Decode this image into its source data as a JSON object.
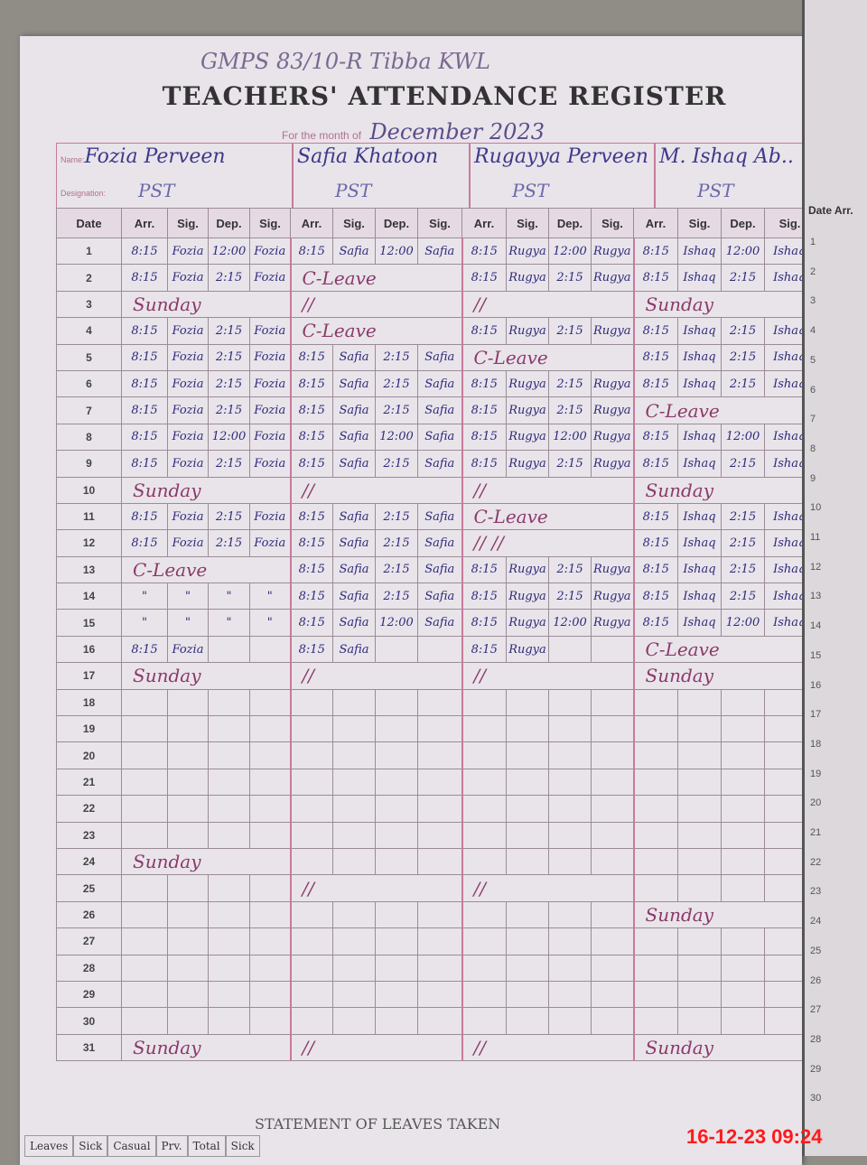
{
  "header": {
    "school": "GMPS 83/10-R   Tibba   KWL",
    "title": "TEACHERS' ATTENDANCE REGISTER",
    "month_label": "For the month of",
    "month_value": "December 2023"
  },
  "labels": {
    "name": "Name:",
    "designation": "Designation:"
  },
  "teachers": [
    {
      "name": "Fozia Perveen",
      "designation": "PST"
    },
    {
      "name": "Safia Khatoon",
      "designation": "PST"
    },
    {
      "name": "Rugayya Perveen",
      "designation": "PST"
    },
    {
      "name": "M. Ishaq Ab..",
      "designation": "PST"
    }
  ],
  "columns": {
    "date": "Date",
    "arr": "Arr.",
    "sig": "Sig.",
    "dep": "Dep.",
    "sig2": "Sig."
  },
  "rows": [
    {
      "date": "1",
      "cells": [
        [
          "8:15",
          "Fozia",
          "12:00",
          "Fozia"
        ],
        [
          "8:15",
          "Safia",
          "12:00",
          "Safia"
        ],
        [
          "8:15",
          "Rugya",
          "12:00",
          "Rugya"
        ],
        [
          "8:15",
          "Ishaq",
          "12:00",
          "Ishaq"
        ]
      ]
    },
    {
      "date": "2",
      "cells": [
        [
          "8:15",
          "Fozia",
          "2:15",
          "Fozia"
        ],
        {
          "note": "C-Leave"
        },
        [
          "8:15",
          "Rugya",
          "2:15",
          "Rugya"
        ],
        [
          "8:15",
          "Ishaq",
          "2:15",
          "Ishaq"
        ]
      ]
    },
    {
      "date": "3",
      "cells": [
        {
          "note": "Sunday"
        },
        {
          "note": "//"
        },
        {
          "note": "//"
        },
        {
          "note": "Sunday"
        }
      ]
    },
    {
      "date": "4",
      "cells": [
        [
          "8:15",
          "Fozia",
          "2:15",
          "Fozia"
        ],
        {
          "note": "C-Leave"
        },
        [
          "8:15",
          "Rugya",
          "2:15",
          "Rugya"
        ],
        [
          "8:15",
          "Ishaq",
          "2:15",
          "Ishaq"
        ]
      ]
    },
    {
      "date": "5",
      "cells": [
        [
          "8:15",
          "Fozia",
          "2:15",
          "Fozia"
        ],
        [
          "8:15",
          "Safia",
          "2:15",
          "Safia"
        ],
        {
          "note": "C-Leave"
        },
        [
          "8:15",
          "Ishaq",
          "2:15",
          "Ishaq"
        ]
      ]
    },
    {
      "date": "6",
      "cells": [
        [
          "8:15",
          "Fozia",
          "2:15",
          "Fozia"
        ],
        [
          "8:15",
          "Safia",
          "2:15",
          "Safia"
        ],
        [
          "8:15",
          "Rugya",
          "2:15",
          "Rugya"
        ],
        [
          "8:15",
          "Ishaq",
          "2:15",
          "Ishaq"
        ]
      ]
    },
    {
      "date": "7",
      "cells": [
        [
          "8:15",
          "Fozia",
          "2:15",
          "Fozia"
        ],
        [
          "8:15",
          "Safia",
          "2:15",
          "Safia"
        ],
        [
          "8:15",
          "Rugya",
          "2:15",
          "Rugya"
        ],
        {
          "note": "C-Leave"
        }
      ]
    },
    {
      "date": "8",
      "cells": [
        [
          "8:15",
          "Fozia",
          "12:00",
          "Fozia"
        ],
        [
          "8:15",
          "Safia",
          "12:00",
          "Safia"
        ],
        [
          "8:15",
          "Rugya",
          "12:00",
          "Rugya"
        ],
        [
          "8:15",
          "Ishaq",
          "12:00",
          "Ishaq"
        ]
      ]
    },
    {
      "date": "9",
      "cells": [
        [
          "8:15",
          "Fozia",
          "2:15",
          "Fozia"
        ],
        [
          "8:15",
          "Safia",
          "2:15",
          "Safia"
        ],
        [
          "8:15",
          "Rugya",
          "2:15",
          "Rugya"
        ],
        [
          "8:15",
          "Ishaq",
          "2:15",
          "Ishaq"
        ]
      ]
    },
    {
      "date": "10",
      "cells": [
        {
          "note": "Sunday"
        },
        {
          "note": "//"
        },
        {
          "note": "//"
        },
        {
          "note": "Sunday"
        }
      ]
    },
    {
      "date": "11",
      "cells": [
        [
          "8:15",
          "Fozia",
          "2:15",
          "Fozia"
        ],
        [
          "8:15",
          "Safia",
          "2:15",
          "Safia"
        ],
        {
          "note": "C-Leave"
        },
        [
          "8:15",
          "Ishaq",
          "2:15",
          "Ishaq"
        ]
      ]
    },
    {
      "date": "12",
      "cells": [
        [
          "8:15",
          "Fozia",
          "2:15",
          "Fozia"
        ],
        [
          "8:15",
          "Safia",
          "2:15",
          "Safia"
        ],
        {
          "note": "//        //"
        },
        [
          "8:15",
          "Ishaq",
          "2:15",
          "Ishaq"
        ]
      ]
    },
    {
      "date": "13",
      "cells": [
        {
          "note": "C-Leave"
        },
        [
          "8:15",
          "Safia",
          "2:15",
          "Safia"
        ],
        [
          "8:15",
          "Rugya",
          "2:15",
          "Rugya"
        ],
        [
          "8:15",
          "Ishaq",
          "2:15",
          "Ishaq"
        ]
      ]
    },
    {
      "date": "14",
      "cells": [
        [
          "\"",
          "\"",
          "\"",
          "\""
        ],
        [
          "8:15",
          "Safia",
          "2:15",
          "Safia"
        ],
        [
          "8:15",
          "Rugya",
          "2:15",
          "Rugya"
        ],
        [
          "8:15",
          "Ishaq",
          "2:15",
          "Ishaq"
        ]
      ]
    },
    {
      "date": "15",
      "cells": [
        [
          "\"",
          "\"",
          "\"",
          "\""
        ],
        [
          "8:15",
          "Safia",
          "12:00",
          "Safia"
        ],
        [
          "8:15",
          "Rugya",
          "12:00",
          "Rugya"
        ],
        [
          "8:15",
          "Ishaq",
          "12:00",
          "Ishaq"
        ]
      ]
    },
    {
      "date": "16",
      "cells": [
        [
          "8:15",
          "Fozia",
          "",
          ""
        ],
        [
          "8:15",
          "Safia",
          "",
          ""
        ],
        [
          "8:15",
          "Rugya",
          "",
          ""
        ],
        {
          "note": "C-Leave"
        }
      ]
    },
    {
      "date": "17",
      "cells": [
        {
          "note": "Sunday"
        },
        {
          "note": "//"
        },
        {
          "note": "//"
        },
        {
          "note": "Sunday"
        }
      ]
    },
    {
      "date": "18",
      "cells": [
        [],
        [],
        [],
        []
      ]
    },
    {
      "date": "19",
      "cells": [
        [],
        [],
        [],
        []
      ]
    },
    {
      "date": "20",
      "cells": [
        [],
        [],
        [],
        []
      ]
    },
    {
      "date": "21",
      "cells": [
        [],
        [],
        [],
        []
      ]
    },
    {
      "date": "22",
      "cells": [
        [],
        [],
        [],
        []
      ]
    },
    {
      "date": "23",
      "cells": [
        [],
        [],
        [],
        []
      ]
    },
    {
      "date": "24",
      "cells": [
        {
          "note": "Sunday"
        },
        [],
        [],
        []
      ]
    },
    {
      "date": "25",
      "cells": [
        [],
        {
          "note": "//"
        },
        {
          "note": "//"
        },
        []
      ]
    },
    {
      "date": "26",
      "cells": [
        [],
        [],
        [],
        {
          "note": "Sunday"
        }
      ]
    },
    {
      "date": "27",
      "cells": [
        [],
        [],
        [],
        []
      ]
    },
    {
      "date": "28",
      "cells": [
        [],
        [],
        [],
        []
      ]
    },
    {
      "date": "29",
      "cells": [
        [],
        [],
        [],
        []
      ]
    },
    {
      "date": "30",
      "cells": [
        [],
        [],
        [],
        []
      ]
    },
    {
      "date": "31",
      "cells": [
        {
          "note": "Sunday"
        },
        {
          "note": "//"
        },
        {
          "note": "//"
        },
        {
          "note": "Sunday"
        }
      ]
    }
  ],
  "leaves": {
    "title": "STATEMENT OF LEAVES TAKEN",
    "headers": [
      "Leaves",
      "Sick",
      "Casual",
      "Prv.",
      "Total",
      "Sick"
    ]
  },
  "right_page": {
    "header": "Date  Arr.",
    "dates": [
      "1",
      "2",
      "3",
      "4",
      "5",
      "6",
      "7",
      "8",
      "9",
      "10",
      "11",
      "12",
      "13",
      "14",
      "15",
      "16",
      "17",
      "18",
      "19",
      "20",
      "21",
      "22",
      "23",
      "24",
      "25",
      "26",
      "27",
      "28",
      "29",
      "30"
    ]
  },
  "timestamp": "16-12-23  09:24"
}
